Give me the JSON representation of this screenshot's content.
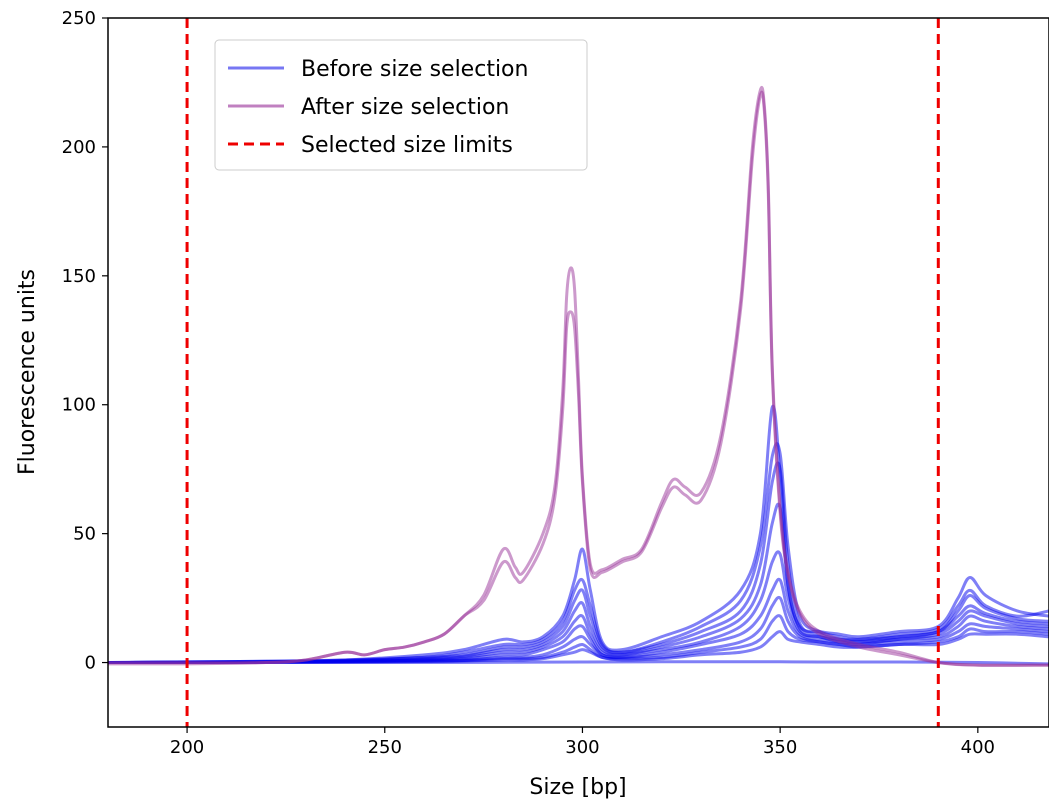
{
  "chart_data": {
    "type": "line",
    "title": "",
    "xlabel": "Size [bp]",
    "ylabel": "Fluorescence units",
    "xlim": [
      180,
      418
    ],
    "ylim": [
      -25,
      250
    ],
    "xticks": [
      200,
      250,
      300,
      350,
      400
    ],
    "yticks": [
      0,
      50,
      100,
      150,
      200,
      250
    ],
    "grid": false,
    "legend_position": "upper-left",
    "legend": [
      {
        "label": "Before size selection",
        "color": "#0000ee",
        "style": "solid"
      },
      {
        "label": "After size selection",
        "color": "#993399",
        "style": "solid"
      },
      {
        "label": "Selected size limits",
        "color": "#ee0000",
        "style": "dashed"
      }
    ],
    "limits": [
      200,
      390
    ],
    "colors": {
      "before": "#0000ee",
      "after": "#993399",
      "limits": "#ee0000"
    },
    "series": [
      {
        "group": "before",
        "x": [
          180,
          220,
          240,
          260,
          270,
          280,
          285,
          290,
          295,
          298,
          300,
          302,
          305,
          310,
          320,
          330,
          340,
          345,
          348,
          350,
          352,
          355,
          360,
          365,
          370,
          380,
          390,
          395,
          398,
          402,
          410,
          418
        ],
        "y": [
          0,
          0.5,
          1,
          3,
          5,
          9,
          8,
          10,
          18,
          32,
          44,
          28,
          8,
          5,
          10,
          16,
          28,
          50,
          99,
          72,
          30,
          14,
          12,
          11,
          10,
          12,
          14,
          25,
          33,
          26,
          20,
          18
        ]
      },
      {
        "group": "before",
        "x": [
          180,
          220,
          240,
          260,
          270,
          280,
          285,
          290,
          295,
          298,
          300,
          302,
          305,
          310,
          320,
          330,
          340,
          345,
          348,
          350,
          352,
          355,
          360,
          365,
          370,
          380,
          390,
          395,
          398,
          402,
          410,
          418
        ],
        "y": [
          0,
          0.5,
          1,
          2,
          4,
          7,
          7,
          9,
          16,
          28,
          32,
          22,
          7,
          4,
          8,
          14,
          24,
          45,
          80,
          81,
          45,
          18,
          12,
          10,
          9,
          11,
          13,
          22,
          28,
          22,
          18,
          20
        ]
      },
      {
        "group": "before",
        "x": [
          180,
          220,
          240,
          260,
          270,
          280,
          285,
          290,
          295,
          298,
          300,
          302,
          305,
          310,
          320,
          330,
          340,
          345,
          348,
          350,
          352,
          355,
          360,
          365,
          370,
          380,
          390,
          395,
          398,
          402,
          410,
          418
        ],
        "y": [
          0,
          0.3,
          0.8,
          2,
          3,
          6,
          6,
          8,
          14,
          24,
          28,
          18,
          6,
          4,
          7,
          12,
          20,
          38,
          70,
          75,
          38,
          15,
          11,
          9,
          9,
          10,
          12,
          20,
          26,
          21,
          17,
          16
        ]
      },
      {
        "group": "before",
        "x": [
          180,
          220,
          240,
          260,
          270,
          280,
          285,
          290,
          295,
          298,
          300,
          302,
          305,
          310,
          320,
          330,
          340,
          345,
          348,
          350,
          352,
          355,
          360,
          365,
          370,
          380,
          390,
          395,
          398,
          402,
          410,
          418
        ],
        "y": [
          0,
          0.3,
          0.7,
          1.5,
          2.5,
          5,
          5,
          7,
          12,
          20,
          23,
          14,
          5,
          3,
          6,
          10,
          17,
          30,
          54,
          60,
          30,
          13,
          10,
          9,
          8,
          10,
          12,
          18,
          22,
          19,
          16,
          15
        ]
      },
      {
        "group": "before",
        "x": [
          180,
          220,
          240,
          260,
          270,
          280,
          285,
          290,
          295,
          298,
          300,
          302,
          305,
          310,
          320,
          330,
          340,
          345,
          348,
          350,
          352,
          355,
          360,
          365,
          370,
          380,
          390,
          395,
          398,
          402,
          410,
          418
        ],
        "y": [
          0,
          0.2,
          0.5,
          1,
          2,
          4,
          4,
          6,
          10,
          16,
          18,
          11,
          4,
          3,
          5,
          8,
          14,
          24,
          39,
          42,
          25,
          12,
          10,
          8,
          8,
          9,
          11,
          16,
          20,
          18,
          15,
          14
        ]
      },
      {
        "group": "before",
        "x": [
          180,
          220,
          240,
          260,
          270,
          280,
          285,
          290,
          295,
          298,
          300,
          302,
          305,
          310,
          320,
          330,
          340,
          345,
          348,
          350,
          352,
          355,
          360,
          365,
          370,
          380,
          390,
          395,
          398,
          402,
          410,
          418
        ],
        "y": [
          0,
          0.2,
          0.5,
          1,
          1.5,
          3,
          3,
          5,
          8,
          13,
          14,
          9,
          3,
          2,
          4,
          7,
          11,
          18,
          28,
          32,
          20,
          11,
          9,
          8,
          7,
          9,
          10,
          14,
          18,
          16,
          14,
          13
        ]
      },
      {
        "group": "before",
        "x": [
          180,
          220,
          240,
          260,
          270,
          280,
          285,
          290,
          295,
          298,
          300,
          302,
          305,
          310,
          320,
          330,
          340,
          345,
          348,
          350,
          352,
          355,
          360,
          365,
          370,
          380,
          390,
          395,
          398,
          402,
          410,
          418
        ],
        "y": [
          0,
          0.1,
          0.3,
          0.8,
          1,
          2,
          2,
          3,
          6,
          9,
          10,
          7,
          3,
          2,
          3,
          5,
          8,
          13,
          22,
          25,
          16,
          10,
          8,
          7,
          7,
          8,
          9,
          12,
          15,
          14,
          13,
          12
        ]
      },
      {
        "group": "before",
        "x": [
          180,
          220,
          240,
          260,
          270,
          280,
          285,
          290,
          295,
          298,
          300,
          302,
          305,
          310,
          320,
          330,
          340,
          345,
          348,
          350,
          352,
          355,
          360,
          365,
          370,
          380,
          390,
          395,
          398,
          402,
          410,
          418
        ],
        "y": [
          0,
          0.1,
          0.3,
          0.5,
          0.8,
          1.5,
          1.5,
          2,
          4,
          6,
          7,
          5,
          2,
          1.5,
          2,
          4,
          6,
          9,
          16,
          18,
          12,
          9,
          8,
          7,
          6,
          7,
          8,
          10,
          13,
          12,
          12,
          11
        ]
      },
      {
        "group": "before",
        "x": [
          180,
          220,
          240,
          260,
          270,
          280,
          285,
          290,
          295,
          298,
          300,
          302,
          305,
          310,
          320,
          330,
          340,
          345,
          348,
          350,
          352,
          355,
          360,
          365,
          370,
          380,
          390,
          395,
          398,
          402,
          410,
          418
        ],
        "y": [
          0,
          0.1,
          0.2,
          0.4,
          0.6,
          1,
          1,
          1.5,
          3,
          4,
          5,
          4,
          2,
          1,
          1.5,
          3,
          4,
          6,
          10,
          12,
          9,
          8,
          7,
          6,
          6,
          7,
          7,
          9,
          11,
          11,
          11,
          10
        ]
      },
      {
        "group": "before",
        "x": [
          180,
          220,
          260,
          300,
          320,
          340,
          350,
          360,
          380,
          400,
          418
        ],
        "y": [
          0,
          0,
          0,
          0.2,
          0.3,
          0.3,
          0.3,
          0.2,
          0.2,
          0,
          -0.5
        ]
      },
      {
        "group": "after",
        "x": [
          180,
          200,
          220,
          230,
          240,
          245,
          250,
          255,
          260,
          265,
          270,
          275,
          280,
          283,
          285,
          290,
          293,
          295,
          296,
          297,
          298,
          299,
          300,
          302,
          305,
          310,
          315,
          320,
          323,
          326,
          330,
          335,
          340,
          343,
          345,
          346,
          347,
          348,
          350,
          352,
          355,
          360,
          370,
          380,
          390,
          400,
          418
        ],
        "y": [
          0,
          0,
          0,
          1,
          4,
          3,
          5,
          6,
          8,
          11,
          18,
          26,
          44,
          37,
          35,
          50,
          68,
          105,
          142,
          153,
          145,
          110,
          72,
          38,
          36,
          40,
          44,
          62,
          71,
          68,
          66,
          88,
          140,
          200,
          222,
          216,
          185,
          115,
          60,
          35,
          20,
          12,
          7,
          4,
          0,
          -1,
          -1
        ]
      },
      {
        "group": "after",
        "x": [
          180,
          200,
          220,
          230,
          240,
          245,
          250,
          255,
          260,
          265,
          270,
          275,
          280,
          283,
          285,
          290,
          293,
          295,
          296,
          297,
          298,
          299,
          300,
          302,
          305,
          310,
          315,
          320,
          323,
          326,
          330,
          335,
          340,
          343,
          345,
          346,
          347,
          348,
          350,
          352,
          355,
          360,
          370,
          380,
          390,
          400,
          418
        ],
        "y": [
          -0.5,
          -0.5,
          0,
          1,
          4,
          3,
          5,
          6,
          8,
          11,
          18,
          24,
          39,
          33,
          32,
          46,
          64,
          98,
          130,
          136,
          130,
          104,
          70,
          36,
          35,
          39,
          43,
          60,
          68,
          65,
          63,
          85,
          137,
          196,
          220,
          214,
          182,
          113,
          58,
          34,
          19,
          11,
          6,
          3,
          0,
          -1,
          -1
        ]
      }
    ]
  }
}
